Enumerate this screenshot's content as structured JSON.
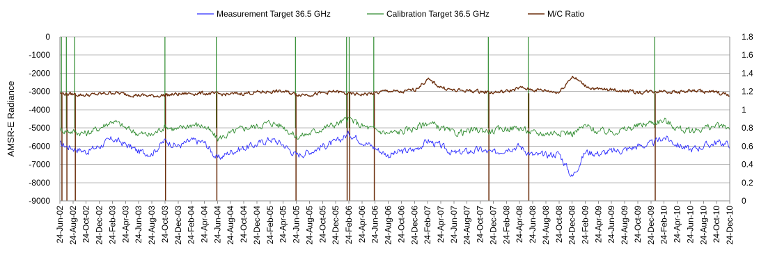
{
  "chart_data": {
    "type": "line",
    "title": "",
    "ylabel": "AMSR-E Radiance",
    "y2label": "",
    "xlabel": "",
    "ylim": [
      -9000,
      0
    ],
    "y2lim": [
      0,
      1.8
    ],
    "y_ticks": [
      0,
      -1000,
      -2000,
      -3000,
      -4000,
      -5000,
      -6000,
      -7000,
      -8000,
      -9000
    ],
    "y2_ticks": [
      1.8,
      1.6,
      1.4,
      1.2,
      1,
      0.8,
      0.6,
      0.4,
      0.2,
      0
    ],
    "x_start": "2002-06-24",
    "x_end": "2010-12-24",
    "x_ticks": [
      "24-Jun-02",
      "24-Aug-02",
      "24-Oct-02",
      "24-Dec-02",
      "24-Feb-03",
      "24-Apr-03",
      "24-Jun-03",
      "24-Aug-03",
      "24-Oct-03",
      "24-Dec-03",
      "24-Feb-04",
      "24-Apr-04",
      "24-Jun-04",
      "24-Aug-04",
      "24-Oct-04",
      "24-Dec-04",
      "24-Feb-05",
      "24-Apr-05",
      "24-Jun-05",
      "24-Aug-05",
      "24-Oct-05",
      "24-Dec-05",
      "24-Feb-06",
      "24-Apr-06",
      "24-Jun-06",
      "24-Aug-06",
      "24-Oct-06",
      "24-Dec-06",
      "24-Feb-07",
      "24-Apr-07",
      "24-Jun-07",
      "24-Aug-07",
      "24-Oct-07",
      "24-Dec-07",
      "24-Feb-08",
      "24-Apr-08",
      "24-Jun-08",
      "24-Aug-08",
      "24-Oct-08",
      "24-Dec-08",
      "24-Feb-09",
      "24-Apr-09",
      "24-Jun-09",
      "24-Aug-09",
      "24-Oct-09",
      "24-Dec-09",
      "24-Feb-10",
      "24-Apr-10",
      "24-Jun-10",
      "24-Aug-10",
      "24-Oct-10",
      "24-Dec-10"
    ],
    "grid": true,
    "legend_position": "top",
    "series": [
      {
        "name": "Measurement Target 36.5 GHz",
        "axis": "left",
        "color": "#2b2bff",
        "points": [
          [
            "2002-06-24",
            -5900
          ],
          [
            "2002-08-24",
            -6100
          ],
          [
            "2002-10-24",
            -6300
          ],
          [
            "2002-12-24",
            -6000
          ],
          [
            "2003-02-24",
            -5600
          ],
          [
            "2003-04-24",
            -5900
          ],
          [
            "2003-06-24",
            -6300
          ],
          [
            "2003-08-24",
            -6400
          ],
          [
            "2003-10-24",
            -5700
          ],
          [
            "2003-12-24",
            -6000
          ],
          [
            "2004-02-24",
            -5700
          ],
          [
            "2004-04-24",
            -5800
          ],
          [
            "2004-06-24",
            -6700
          ],
          [
            "2004-08-24",
            -6300
          ],
          [
            "2004-10-24",
            -6100
          ],
          [
            "2004-12-24",
            -5900
          ],
          [
            "2005-02-24",
            -5600
          ],
          [
            "2005-04-24",
            -5900
          ],
          [
            "2005-06-24",
            -6500
          ],
          [
            "2005-08-24",
            -6300
          ],
          [
            "2005-10-24",
            -6000
          ],
          [
            "2005-12-24",
            -5800
          ],
          [
            "2006-02-24",
            -5300
          ],
          [
            "2006-04-24",
            -5700
          ],
          [
            "2006-06-24",
            -6100
          ],
          [
            "2006-08-24",
            -6500
          ],
          [
            "2006-10-24",
            -6300
          ],
          [
            "2006-12-24",
            -6200
          ],
          [
            "2007-02-24",
            -5700
          ],
          [
            "2007-04-24",
            -6000
          ],
          [
            "2007-06-24",
            -6400
          ],
          [
            "2007-08-24",
            -6300
          ],
          [
            "2007-10-24",
            -6200
          ],
          [
            "2007-12-24",
            -6400
          ],
          [
            "2008-02-24",
            -6100
          ],
          [
            "2008-04-24",
            -6000
          ],
          [
            "2008-06-24",
            -6500
          ],
          [
            "2008-08-24",
            -6500
          ],
          [
            "2008-10-24",
            -6400
          ],
          [
            "2008-12-24",
            -7700
          ],
          [
            "2009-02-24",
            -6300
          ],
          [
            "2009-04-24",
            -6400
          ],
          [
            "2009-06-24",
            -6300
          ],
          [
            "2009-08-24",
            -6200
          ],
          [
            "2009-10-24",
            -6000
          ],
          [
            "2009-12-24",
            -5900
          ],
          [
            "2010-02-24",
            -5500
          ],
          [
            "2010-04-24",
            -5900
          ],
          [
            "2010-06-24",
            -6200
          ],
          [
            "2010-08-24",
            -6000
          ],
          [
            "2010-10-24",
            -5800
          ],
          [
            "2010-12-24",
            -5900
          ]
        ]
      },
      {
        "name": "Calibration Target 36.5 GHz",
        "axis": "left",
        "color": "#2e8b2e",
        "points": [
          [
            "2002-06-24",
            -5100
          ],
          [
            "2002-08-24",
            -5200
          ],
          [
            "2002-10-24",
            -5300
          ],
          [
            "2002-12-24",
            -5000
          ],
          [
            "2003-02-24",
            -4600
          ],
          [
            "2003-04-24",
            -5000
          ],
          [
            "2003-06-24",
            -5300
          ],
          [
            "2003-08-24",
            -5400
          ],
          [
            "2003-10-24",
            -4900
          ],
          [
            "2003-12-24",
            -5100
          ],
          [
            "2004-02-24",
            -4800
          ],
          [
            "2004-04-24",
            -4900
          ],
          [
            "2004-06-24",
            -5600
          ],
          [
            "2004-08-24",
            -5300
          ],
          [
            "2004-10-24",
            -5000
          ],
          [
            "2004-12-24",
            -4900
          ],
          [
            "2005-02-24",
            -4700
          ],
          [
            "2005-04-24",
            -4900
          ],
          [
            "2005-06-24",
            -5500
          ],
          [
            "2005-08-24",
            -5300
          ],
          [
            "2005-10-24",
            -5000
          ],
          [
            "2005-12-24",
            -4800
          ],
          [
            "2006-02-24",
            -4500
          ],
          [
            "2006-04-24",
            -4900
          ],
          [
            "2006-06-24",
            -5100
          ],
          [
            "2006-08-24",
            -5300
          ],
          [
            "2006-10-24",
            -5200
          ],
          [
            "2006-12-24",
            -5000
          ],
          [
            "2007-02-24",
            -4700
          ],
          [
            "2007-04-24",
            -5000
          ],
          [
            "2007-06-24",
            -5300
          ],
          [
            "2007-08-24",
            -5200
          ],
          [
            "2007-10-24",
            -5100
          ],
          [
            "2007-12-24",
            -5200
          ],
          [
            "2008-02-24",
            -5000
          ],
          [
            "2008-04-24",
            -5000
          ],
          [
            "2008-06-24",
            -5300
          ],
          [
            "2008-08-24",
            -5300
          ],
          [
            "2008-10-24",
            -5200
          ],
          [
            "2008-12-24",
            -5300
          ],
          [
            "2009-02-24",
            -4900
          ],
          [
            "2009-04-24",
            -5200
          ],
          [
            "2009-06-24",
            -5200
          ],
          [
            "2009-08-24",
            -5100
          ],
          [
            "2009-10-24",
            -4900
          ],
          [
            "2009-12-24",
            -4700
          ],
          [
            "2010-02-24",
            -4600
          ],
          [
            "2010-04-24",
            -5000
          ],
          [
            "2010-06-24",
            -5200
          ],
          [
            "2010-08-24",
            -5000
          ],
          [
            "2010-10-24",
            -4900
          ],
          [
            "2010-12-24",
            -5000
          ]
        ]
      },
      {
        "name": "M/C Ratio",
        "axis": "right",
        "color": "#6b2e0c",
        "points": [
          [
            "2002-06-24",
            1.18
          ],
          [
            "2002-08-24",
            1.17
          ],
          [
            "2002-10-24",
            1.16
          ],
          [
            "2002-12-24",
            1.17
          ],
          [
            "2003-02-24",
            1.19
          ],
          [
            "2003-04-24",
            1.17
          ],
          [
            "2003-06-24",
            1.16
          ],
          [
            "2003-08-24",
            1.15
          ],
          [
            "2003-10-24",
            1.16
          ],
          [
            "2003-12-24",
            1.17
          ],
          [
            "2004-02-24",
            1.18
          ],
          [
            "2004-04-24",
            1.18
          ],
          [
            "2004-06-24",
            1.17
          ],
          [
            "2004-08-24",
            1.17
          ],
          [
            "2004-10-24",
            1.18
          ],
          [
            "2004-12-24",
            1.19
          ],
          [
            "2005-02-24",
            1.2
          ],
          [
            "2005-04-24",
            1.2
          ],
          [
            "2005-06-24",
            1.17
          ],
          [
            "2005-08-24",
            1.17
          ],
          [
            "2005-10-24",
            1.18
          ],
          [
            "2005-12-24",
            1.2
          ],
          [
            "2006-02-24",
            1.17
          ],
          [
            "2006-04-24",
            1.17
          ],
          [
            "2006-06-24",
            1.18
          ],
          [
            "2006-08-24",
            1.21
          ],
          [
            "2006-10-24",
            1.19
          ],
          [
            "2006-12-24",
            1.22
          ],
          [
            "2007-02-24",
            1.33
          ],
          [
            "2007-04-24",
            1.25
          ],
          [
            "2007-06-24",
            1.21
          ],
          [
            "2007-08-24",
            1.21
          ],
          [
            "2007-10-24",
            1.2
          ],
          [
            "2007-12-24",
            1.19
          ],
          [
            "2008-02-24",
            1.2
          ],
          [
            "2008-04-24",
            1.24
          ],
          [
            "2008-06-24",
            1.22
          ],
          [
            "2008-08-24",
            1.21
          ],
          [
            "2008-10-24",
            1.19
          ],
          [
            "2008-12-24",
            1.37
          ],
          [
            "2009-02-24",
            1.26
          ],
          [
            "2009-04-24",
            1.22
          ],
          [
            "2009-06-24",
            1.22
          ],
          [
            "2009-08-24",
            1.21
          ],
          [
            "2009-10-24",
            1.19
          ],
          [
            "2009-12-24",
            1.2
          ],
          [
            "2010-02-24",
            1.21
          ],
          [
            "2010-04-24",
            1.19
          ],
          [
            "2010-06-24",
            1.21
          ],
          [
            "2010-08-24",
            1.2
          ],
          [
            "2010-10-24",
            1.19
          ],
          [
            "2010-12-24",
            1.16
          ]
        ]
      }
    ],
    "gaps": [
      "2002-07-01",
      "2002-07-24",
      "2002-09-01",
      "2003-10-24",
      "2004-06-18",
      "2005-06-20",
      "2006-02-12",
      "2006-02-24",
      "2006-06-18",
      "2007-12-01",
      "2008-06-03",
      "2010-01-10"
    ]
  }
}
